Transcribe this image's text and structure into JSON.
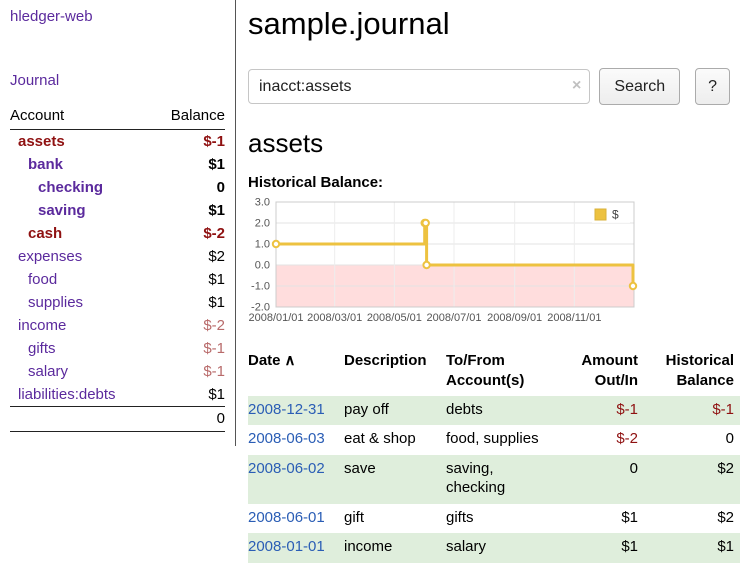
{
  "sidebar": {
    "app_title": "hledger-web",
    "journal_link": "Journal",
    "accounts": {
      "account_header": "Account",
      "balance_header": "Balance",
      "rows": [
        {
          "name": "assets",
          "depth": 1,
          "balance": "$-1",
          "in_view": true,
          "name_negative": true,
          "balance_negative": true
        },
        {
          "name": "bank",
          "depth": 2,
          "balance": "$1",
          "in_view": true,
          "name_negative": false,
          "balance_negative": false
        },
        {
          "name": "checking",
          "depth": 3,
          "balance": "0",
          "in_view": true,
          "name_negative": false,
          "balance_negative": false
        },
        {
          "name": "saving",
          "depth": 3,
          "balance": "$1",
          "in_view": true,
          "name_negative": false,
          "balance_negative": false
        },
        {
          "name": "cash",
          "depth": 2,
          "balance": "$-2",
          "in_view": true,
          "name_negative": true,
          "balance_negative": true
        },
        {
          "name": "expenses",
          "depth": 1,
          "balance": "$2",
          "in_view": false,
          "name_negative": false,
          "balance_negative": false
        },
        {
          "name": "food",
          "depth": 2,
          "balance": "$1",
          "in_view": false,
          "name_negative": false,
          "balance_negative": false
        },
        {
          "name": "supplies",
          "depth": 2,
          "balance": "$1",
          "in_view": false,
          "name_negative": false,
          "balance_negative": false
        },
        {
          "name": "income",
          "depth": 1,
          "balance": "$-2",
          "in_view": false,
          "name_negative": false,
          "balance_negative": true
        },
        {
          "name": "gifts",
          "depth": 2,
          "balance": "$-1",
          "in_view": false,
          "name_negative": false,
          "balance_negative": true
        },
        {
          "name": "salary",
          "depth": 2,
          "balance": "$-1",
          "in_view": false,
          "name_negative": false,
          "balance_negative": true
        },
        {
          "name": "liabilities:debts",
          "depth": 1,
          "balance": "$1",
          "in_view": false,
          "name_negative": false,
          "balance_negative": false
        }
      ],
      "total": "0"
    }
  },
  "main": {
    "title": "sample.journal",
    "search": {
      "value": "inacct:assets",
      "clear_icon": "×",
      "button_label": "Search",
      "help_label": "?"
    },
    "account_heading": "assets",
    "chart_label": "Historical Balance:"
  },
  "chart_data": {
    "type": "line",
    "title": "Historical Balance",
    "step": true,
    "series": [
      {
        "name": "$",
        "color": "#edc240",
        "points": [
          [
            "2008-01-01",
            1
          ],
          [
            "2008-06-01",
            2
          ],
          [
            "2008-06-02",
            2
          ],
          [
            "2008-06-03",
            0
          ],
          [
            "2008-12-31",
            -1
          ]
        ]
      }
    ],
    "x_range": [
      "2008-01-01",
      "2009-01-01"
    ],
    "ylim": [
      -2,
      3
    ],
    "y_ticks": [
      "3.0",
      "2.0",
      "1.0",
      "0.0",
      "-1.0",
      "-2.0"
    ],
    "x_ticks": [
      "2008/01/01",
      "2008/03/01",
      "2008/05/01",
      "2008/07/01",
      "2008/09/01",
      "2008/11/01"
    ],
    "grid": true,
    "legend_position": "top-right",
    "negative_region_color": "#ffdddd"
  },
  "register": {
    "headers": {
      "date": "Date",
      "sort_icon": "∧",
      "description": "Description",
      "tofrom_line1": "To/From",
      "tofrom_line2": "Account(s)",
      "amount_line1": "Amount",
      "amount_line2": "Out/In",
      "balance_line1": "Historical",
      "balance_line2": "Balance"
    },
    "rows": [
      {
        "date": "2008-12-31",
        "description": "pay off",
        "accounts": "debts",
        "amount": "$-1",
        "amount_negative": true,
        "balance": "$-1",
        "balance_negative": true
      },
      {
        "date": "2008-06-03",
        "description": "eat & shop",
        "accounts": "food, supplies",
        "amount": "$-2",
        "amount_negative": true,
        "balance": "0",
        "balance_negative": false
      },
      {
        "date": "2008-06-02",
        "description": "save",
        "accounts": "saving, checking",
        "amount": "0",
        "amount_negative": false,
        "balance": "$2",
        "balance_negative": false
      },
      {
        "date": "2008-06-01",
        "description": "gift",
        "accounts": "gifts",
        "amount": "$1",
        "amount_negative": false,
        "balance": "$2",
        "balance_negative": false
      },
      {
        "date": "2008-01-01",
        "description": "income",
        "accounts": "salary",
        "amount": "$1",
        "amount_negative": false,
        "balance": "$1",
        "balance_negative": false
      }
    ]
  },
  "colors": {
    "accent_purple": "#5b2a9d",
    "link_blue": "#2a5db5",
    "negative_dark": "#8f1111",
    "negative_muted": "#b86a6a",
    "row_green": "#dfeedc",
    "series_yellow": "#edc240",
    "negative_region": "#ffdddd"
  }
}
